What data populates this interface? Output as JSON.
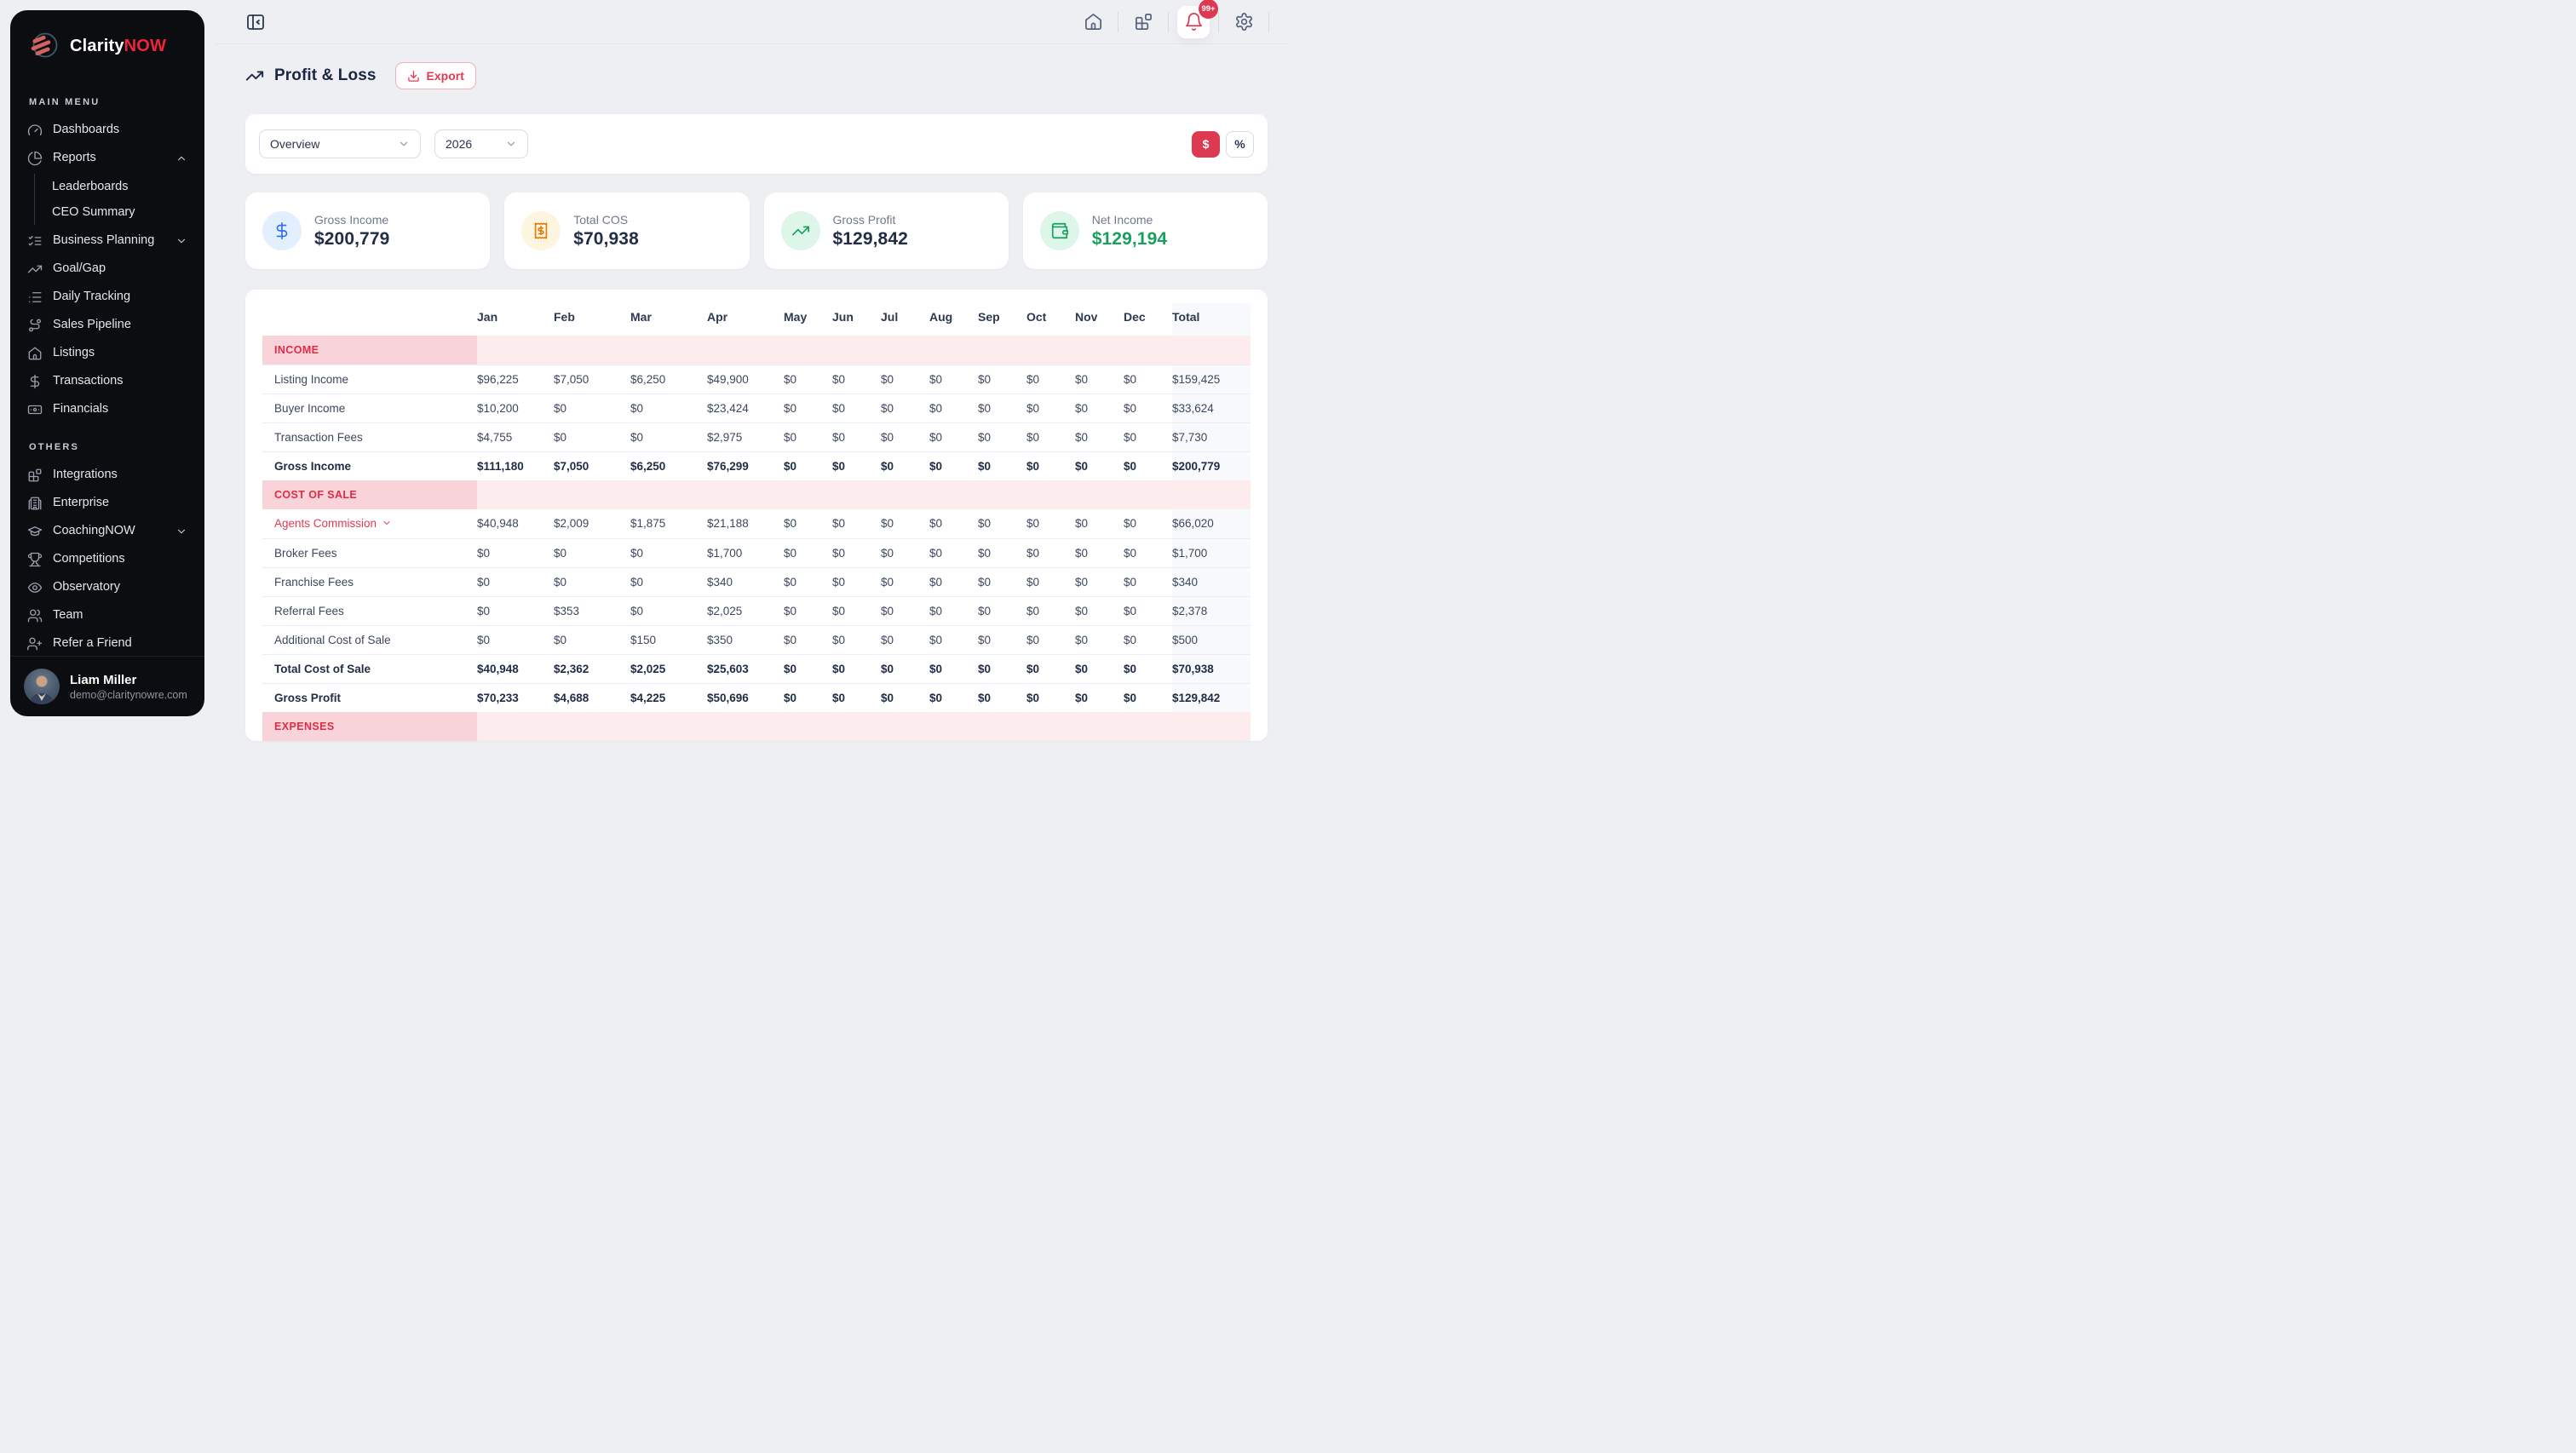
{
  "brand": {
    "name_primary": "Clarity",
    "name_secondary": "NOW"
  },
  "colors": {
    "accent_red": "#dd3a52",
    "sidebar_bg": "#0c0d11",
    "page_bg": "#edeff3",
    "navy_text": "#1f2c45",
    "section_label_bg": "#f8d3d9",
    "section_row_bg": "#fdecee",
    "total_col_bg": "#f7f9fc",
    "card_blue": "#2f6fed",
    "card_orange": "#e07c10",
    "card_green": "#17a05e"
  },
  "sidebar": {
    "main_menu_label": "MAIN MENU",
    "others_label": "OTHERS",
    "main_items": [
      {
        "label": "Dashboards",
        "icon": "gauge-icon"
      },
      {
        "label": "Reports",
        "icon": "pie-chart-icon",
        "chevron": "up"
      },
      {
        "sub": [
          "Leaderboards",
          "CEO Summary"
        ]
      },
      {
        "label": "Business Planning",
        "icon": "checklist-icon",
        "chevron": "down"
      },
      {
        "label": "Goal/Gap",
        "icon": "trending-up-icon"
      },
      {
        "label": "Daily Tracking",
        "icon": "list-icon"
      },
      {
        "label": "Sales Pipeline",
        "icon": "route-icon"
      },
      {
        "label": "Listings",
        "icon": "home-icon"
      },
      {
        "label": "Transactions",
        "icon": "dollar-icon"
      },
      {
        "label": "Financials",
        "icon": "banknote-icon"
      }
    ],
    "others_items": [
      {
        "label": "Integrations",
        "icon": "blocks-icon"
      },
      {
        "label": "Enterprise",
        "icon": "building-icon"
      },
      {
        "label": "CoachingNOW",
        "icon": "graduation-cap-icon",
        "chevron": "down"
      },
      {
        "label": "Competitions",
        "icon": "trophy-icon"
      },
      {
        "label": "Observatory",
        "icon": "eye-icon"
      },
      {
        "label": "Team",
        "icon": "users-icon"
      },
      {
        "label": "Refer a Friend",
        "icon": "user-plus-icon"
      }
    ],
    "user": {
      "name": "Liam Miller",
      "email": "demo@claritynowre.com"
    }
  },
  "topbar": {
    "notification_badge": "99+"
  },
  "page": {
    "title": "Profit & Loss",
    "export_label": "Export"
  },
  "filters": {
    "report_type": "Overview",
    "year": "2026",
    "currency_label": "$",
    "percent_label": "%"
  },
  "summary_cards": [
    {
      "label": "Gross Income",
      "value": "$200,779",
      "icon": "dollar-icon",
      "icon_color": "#2f6fed",
      "icon_bg": "#e1efff",
      "value_color": "#222e46"
    },
    {
      "label": "Total COS",
      "value": "$70,938",
      "icon": "receipt-icon",
      "icon_color": "#e07c10",
      "icon_bg": "#fdf5e0",
      "value_color": "#222e46"
    },
    {
      "label": "Gross Profit",
      "value": "$129,842",
      "icon": "trending-up-icon",
      "icon_color": "#17a05e",
      "icon_bg": "#def5ea",
      "value_color": "#222e46"
    },
    {
      "label": "Net Income",
      "value": "$129,194",
      "icon": "wallet-icon",
      "icon_color": "#17a05e",
      "icon_bg": "#def5ea",
      "value_color": "#17a05e"
    }
  ],
  "chart_data": {
    "type": "table",
    "title": "Profit & Loss — Overview 2026",
    "columns": [
      "Jan",
      "Feb",
      "Mar",
      "Apr",
      "May",
      "Jun",
      "Jul",
      "Aug",
      "Sep",
      "Oct",
      "Nov",
      "Dec",
      "Total"
    ],
    "rows": [
      {
        "style": "section",
        "label": "INCOME"
      },
      {
        "style": "data",
        "label": "Listing Income",
        "values": [
          "$96,225",
          "$7,050",
          "$6,250",
          "$49,900",
          "$0",
          "$0",
          "$0",
          "$0",
          "$0",
          "$0",
          "$0",
          "$0",
          "$159,425"
        ]
      },
      {
        "style": "data",
        "label": "Buyer Income",
        "values": [
          "$10,200",
          "$0",
          "$0",
          "$23,424",
          "$0",
          "$0",
          "$0",
          "$0",
          "$0",
          "$0",
          "$0",
          "$0",
          "$33,624"
        ]
      },
      {
        "style": "data",
        "label": "Transaction Fees",
        "values": [
          "$4,755",
          "$0",
          "$0",
          "$2,975",
          "$0",
          "$0",
          "$0",
          "$0",
          "$0",
          "$0",
          "$0",
          "$0",
          "$7,730"
        ]
      },
      {
        "style": "bold",
        "label": "Gross Income",
        "values": [
          "$111,180",
          "$7,050",
          "$6,250",
          "$76,299",
          "$0",
          "$0",
          "$0",
          "$0",
          "$0",
          "$0",
          "$0",
          "$0",
          "$200,779"
        ]
      },
      {
        "style": "section",
        "label": "COST OF SALE"
      },
      {
        "style": "red",
        "label": "Agents Commission",
        "values": [
          "$40,948",
          "$2,009",
          "$1,875",
          "$21,188",
          "$0",
          "$0",
          "$0",
          "$0",
          "$0",
          "$0",
          "$0",
          "$0",
          "$66,020"
        ],
        "expandable": true
      },
      {
        "style": "data",
        "label": "Broker Fees",
        "values": [
          "$0",
          "$0",
          "$0",
          "$1,700",
          "$0",
          "$0",
          "$0",
          "$0",
          "$0",
          "$0",
          "$0",
          "$0",
          "$1,700"
        ]
      },
      {
        "style": "data",
        "label": "Franchise Fees",
        "values": [
          "$0",
          "$0",
          "$0",
          "$340",
          "$0",
          "$0",
          "$0",
          "$0",
          "$0",
          "$0",
          "$0",
          "$0",
          "$340"
        ]
      },
      {
        "style": "data",
        "label": "Referral Fees",
        "values": [
          "$0",
          "$353",
          "$0",
          "$2,025",
          "$0",
          "$0",
          "$0",
          "$0",
          "$0",
          "$0",
          "$0",
          "$0",
          "$2,378"
        ]
      },
      {
        "style": "data",
        "label": "Additional Cost of Sale",
        "values": [
          "$0",
          "$0",
          "$150",
          "$350",
          "$0",
          "$0",
          "$0",
          "$0",
          "$0",
          "$0",
          "$0",
          "$0",
          "$500"
        ]
      },
      {
        "style": "bold",
        "label": "Total Cost of Sale",
        "values": [
          "$40,948",
          "$2,362",
          "$2,025",
          "$25,603",
          "$0",
          "$0",
          "$0",
          "$0",
          "$0",
          "$0",
          "$0",
          "$0",
          "$70,938"
        ]
      },
      {
        "style": "bold",
        "label": "Gross Profit",
        "values": [
          "$70,233",
          "$4,688",
          "$4,225",
          "$50,696",
          "$0",
          "$0",
          "$0",
          "$0",
          "$0",
          "$0",
          "$0",
          "$0",
          "$129,842"
        ]
      },
      {
        "style": "section",
        "label": "EXPENSES"
      }
    ]
  }
}
